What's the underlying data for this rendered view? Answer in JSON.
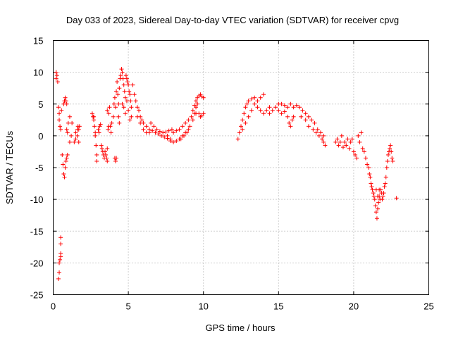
{
  "chart_data": {
    "type": "scatter",
    "title": "Day 033 of 2023, Sidereal Day-to-day VTEC variation (SDTVAR) for receiver cpvg",
    "xlabel": "GPS time / hours",
    "ylabel": "SDTVAR / TECUs",
    "xlim": [
      0,
      25
    ],
    "ylim": [
      -25,
      15
    ],
    "xticks": [
      "0",
      "5",
      "10",
      "15",
      "20",
      "25"
    ],
    "yticks": [
      "15",
      "10",
      "5",
      "0",
      "-5",
      "-10",
      "-15",
      "-20",
      "-25"
    ],
    "grid": true,
    "marker": "+",
    "color": "#ff0000",
    "series": [
      {
        "name": "cpvg",
        "points": [
          [
            0.2,
            9.0
          ],
          [
            0.2,
            10.0
          ],
          [
            0.25,
            9.5
          ],
          [
            0.3,
            8.5
          ],
          [
            0.35,
            -22.5
          ],
          [
            0.4,
            -21.5
          ],
          [
            0.4,
            -20.0
          ],
          [
            0.45,
            -19.5
          ],
          [
            0.5,
            -19.0
          ],
          [
            0.5,
            -18.5
          ],
          [
            0.5,
            -17.0
          ],
          [
            0.5,
            -16.0
          ],
          [
            0.35,
            4.5
          ],
          [
            0.4,
            3.5
          ],
          [
            0.4,
            2.5
          ],
          [
            0.45,
            1.5
          ],
          [
            0.5,
            1.0
          ],
          [
            0.55,
            4.0
          ],
          [
            0.6,
            -3.0
          ],
          [
            0.65,
            -4.5
          ],
          [
            0.7,
            -6.0
          ],
          [
            0.75,
            -6.5
          ],
          [
            0.8,
            -5.0
          ],
          [
            0.85,
            -4.0
          ],
          [
            0.9,
            -3.5
          ],
          [
            0.95,
            -3.0
          ],
          [
            0.7,
            5.0
          ],
          [
            0.75,
            5.5
          ],
          [
            0.8,
            6.0
          ],
          [
            0.85,
            5.5
          ],
          [
            0.9,
            5.0
          ],
          [
            0.9,
            1.0
          ],
          [
            0.95,
            0.5
          ],
          [
            1.0,
            2.0
          ],
          [
            1.1,
            3.0
          ],
          [
            1.1,
            -1.0
          ],
          [
            1.2,
            0.0
          ],
          [
            1.25,
            2.0
          ],
          [
            1.4,
            -1.0
          ],
          [
            1.5,
            -0.5
          ],
          [
            1.5,
            0.5
          ],
          [
            1.6,
            1.0
          ],
          [
            1.6,
            0.0
          ],
          [
            1.65,
            1.5
          ],
          [
            1.7,
            1.0
          ],
          [
            1.7,
            -1.0
          ],
          [
            1.75,
            1.5
          ],
          [
            2.6,
            3.5
          ],
          [
            2.65,
            3.0
          ],
          [
            2.7,
            2.5
          ],
          [
            2.7,
            3.0
          ],
          [
            2.75,
            1.5
          ],
          [
            2.8,
            0.5
          ],
          [
            2.8,
            0.0
          ],
          [
            2.85,
            -1.5
          ],
          [
            2.9,
            -3.0
          ],
          [
            2.9,
            -4.0
          ],
          [
            3.0,
            1.0
          ],
          [
            3.05,
            0.5
          ],
          [
            3.1,
            1.5
          ],
          [
            3.15,
            1.8
          ],
          [
            3.2,
            -1.5
          ],
          [
            3.25,
            -2.0
          ],
          [
            3.3,
            -2.5
          ],
          [
            3.35,
            -3.0
          ],
          [
            3.4,
            -3.5
          ],
          [
            3.45,
            -2.5
          ],
          [
            3.5,
            -3.0
          ],
          [
            3.55,
            -3.5
          ],
          [
            3.6,
            -4.0
          ],
          [
            3.6,
            -2.0
          ],
          [
            3.65,
            1.0
          ],
          [
            3.7,
            1.5
          ],
          [
            3.6,
            4.0
          ],
          [
            3.7,
            3.5
          ],
          [
            3.75,
            4.5
          ],
          [
            3.8,
            1.5
          ],
          [
            3.85,
            0.5
          ],
          [
            3.9,
            2.0
          ],
          [
            4.0,
            3.0
          ],
          [
            4.05,
            5.0
          ],
          [
            4.1,
            6.0
          ],
          [
            4.15,
            4.5
          ],
          [
            4.1,
            -3.5
          ],
          [
            4.15,
            -4.0
          ],
          [
            4.2,
            -3.5
          ],
          [
            4.2,
            7.0
          ],
          [
            4.25,
            8.5
          ],
          [
            4.3,
            6.5
          ],
          [
            4.35,
            5.0
          ],
          [
            4.35,
            3.0
          ],
          [
            4.4,
            2.0
          ],
          [
            4.4,
            7.5
          ],
          [
            4.45,
            9.0
          ],
          [
            4.5,
            9.5
          ],
          [
            4.55,
            10.5
          ],
          [
            4.6,
            10.0
          ],
          [
            4.65,
            9.0
          ],
          [
            4.7,
            8.0
          ],
          [
            4.75,
            7.0
          ],
          [
            4.8,
            6.0
          ],
          [
            4.85,
            9.5
          ],
          [
            4.9,
            9.0
          ],
          [
            4.95,
            8.5
          ],
          [
            5.0,
            8.0
          ],
          [
            5.05,
            7.0
          ],
          [
            5.1,
            6.5
          ],
          [
            5.15,
            5.5
          ],
          [
            5.2,
            4.5
          ],
          [
            4.6,
            5.0
          ],
          [
            4.7,
            4.5
          ],
          [
            4.8,
            3.5
          ],
          [
            4.9,
            5.5
          ],
          [
            5.0,
            4.0
          ],
          [
            5.1,
            2.5
          ],
          [
            5.2,
            3.0
          ],
          [
            5.3,
            8.0
          ],
          [
            5.4,
            6.5
          ],
          [
            5.5,
            5.5
          ],
          [
            5.6,
            4.5
          ],
          [
            5.7,
            4.0
          ],
          [
            5.8,
            3.0
          ],
          [
            5.9,
            2.5
          ],
          [
            6.0,
            2.0
          ],
          [
            5.6,
            3.0
          ],
          [
            5.8,
            2.0
          ],
          [
            6.0,
            1.0
          ],
          [
            6.2,
            0.5
          ],
          [
            6.4,
            0.5
          ],
          [
            6.2,
            1.5
          ],
          [
            6.4,
            1.0
          ],
          [
            6.6,
            0.8
          ],
          [
            6.8,
            0.5
          ],
          [
            7.0,
            0.3
          ],
          [
            7.2,
            0.0
          ],
          [
            7.4,
            -0.2
          ],
          [
            7.6,
            -0.4
          ],
          [
            7.8,
            -0.5
          ],
          [
            6.5,
            2.0
          ],
          [
            6.7,
            1.5
          ],
          [
            6.9,
            1.0
          ],
          [
            7.1,
            0.7
          ],
          [
            7.3,
            0.5
          ],
          [
            7.5,
            0.6
          ],
          [
            7.7,
            0.8
          ],
          [
            7.9,
            1.0
          ],
          [
            7.6,
            0.0
          ],
          [
            7.8,
            -0.8
          ],
          [
            8.0,
            -1.0
          ],
          [
            8.2,
            -0.8
          ],
          [
            8.4,
            -0.5
          ],
          [
            8.6,
            0.0
          ],
          [
            8.8,
            0.5
          ],
          [
            9.0,
            1.0
          ],
          [
            8.0,
            0.5
          ],
          [
            8.2,
            0.8
          ],
          [
            8.4,
            1.0
          ],
          [
            8.6,
            1.5
          ],
          [
            8.8,
            2.0
          ],
          [
            9.0,
            2.5
          ],
          [
            9.2,
            3.0
          ],
          [
            9.4,
            3.5
          ],
          [
            8.5,
            -0.5
          ],
          [
            8.7,
            0.0
          ],
          [
            8.9,
            0.5
          ],
          [
            9.1,
            1.5
          ],
          [
            9.3,
            2.5
          ],
          [
            9.5,
            3.5
          ],
          [
            9.5,
            4.5
          ],
          [
            9.6,
            5.0
          ],
          [
            9.3,
            4.0
          ],
          [
            9.4,
            4.8
          ],
          [
            9.5,
            5.5
          ],
          [
            9.6,
            6.0
          ],
          [
            9.7,
            6.3
          ],
          [
            9.8,
            6.5
          ],
          [
            9.9,
            6.2
          ],
          [
            10.0,
            6.0
          ],
          [
            9.7,
            3.5
          ],
          [
            9.8,
            3.0
          ],
          [
            9.9,
            3.2
          ],
          [
            10.0,
            3.5
          ],
          [
            12.3,
            -0.5
          ],
          [
            12.4,
            0.5
          ],
          [
            12.5,
            1.5
          ],
          [
            12.6,
            2.5
          ],
          [
            12.7,
            3.5
          ],
          [
            12.8,
            4.5
          ],
          [
            12.9,
            5.0
          ],
          [
            13.0,
            5.5
          ],
          [
            12.6,
            1.0
          ],
          [
            12.8,
            2.0
          ],
          [
            13.0,
            3.0
          ],
          [
            13.2,
            4.0
          ],
          [
            13.4,
            5.0
          ],
          [
            13.6,
            5.5
          ],
          [
            13.8,
            6.0
          ],
          [
            14.0,
            6.5
          ],
          [
            13.2,
            5.8
          ],
          [
            13.4,
            6.0
          ],
          [
            13.6,
            4.5
          ],
          [
            13.8,
            4.0
          ],
          [
            14.0,
            3.5
          ],
          [
            14.2,
            4.0
          ],
          [
            14.4,
            4.5
          ],
          [
            14.4,
            3.5
          ],
          [
            14.6,
            4.0
          ],
          [
            14.8,
            4.5
          ],
          [
            15.0,
            5.0
          ],
          [
            15.2,
            5.0
          ],
          [
            15.4,
            4.8
          ],
          [
            15.6,
            4.5
          ],
          [
            15.8,
            5.0
          ],
          [
            15.0,
            4.0
          ],
          [
            15.2,
            3.5
          ],
          [
            15.4,
            3.8
          ],
          [
            15.6,
            3.0
          ],
          [
            15.7,
            2.0
          ],
          [
            15.8,
            1.5
          ],
          [
            15.9,
            2.5
          ],
          [
            16.0,
            3.0
          ],
          [
            16.0,
            4.5
          ],
          [
            16.2,
            4.8
          ],
          [
            16.4,
            4.5
          ],
          [
            16.6,
            4.0
          ],
          [
            16.8,
            3.5
          ],
          [
            17.0,
            3.0
          ],
          [
            17.2,
            2.5
          ],
          [
            17.4,
            2.0
          ],
          [
            16.5,
            3.0
          ],
          [
            16.8,
            2.5
          ],
          [
            17.0,
            1.5
          ],
          [
            17.3,
            1.0
          ],
          [
            17.5,
            0.5
          ],
          [
            17.7,
            0.0
          ],
          [
            17.9,
            -0.5
          ],
          [
            18.0,
            -1.0
          ],
          [
            17.6,
            1.0
          ],
          [
            17.8,
            0.5
          ],
          [
            18.0,
            0.0
          ],
          [
            18.1,
            -1.5
          ],
          [
            18.8,
            -1.0
          ],
          [
            18.9,
            -0.5
          ],
          [
            19.0,
            -1.5
          ],
          [
            19.1,
            -1.0
          ],
          [
            19.2,
            0.0
          ],
          [
            19.3,
            -1.8
          ],
          [
            19.4,
            -1.0
          ],
          [
            19.5,
            -1.5
          ],
          [
            19.6,
            -0.5
          ],
          [
            19.7,
            -2.0
          ],
          [
            19.8,
            -1.0
          ],
          [
            19.9,
            -0.5
          ],
          [
            20.0,
            -2.5
          ],
          [
            20.1,
            -3.0
          ],
          [
            20.2,
            -3.5
          ],
          [
            20.3,
            0.0
          ],
          [
            20.4,
            -1.0
          ],
          [
            20.5,
            0.5
          ],
          [
            20.6,
            -2.0
          ],
          [
            20.7,
            -2.5
          ],
          [
            20.8,
            -3.5
          ],
          [
            20.9,
            -4.5
          ],
          [
            21.0,
            -5.0
          ],
          [
            21.05,
            -6.0
          ],
          [
            21.1,
            -6.5
          ],
          [
            21.15,
            -7.5
          ],
          [
            21.2,
            -8.0
          ],
          [
            21.25,
            -8.5
          ],
          [
            21.3,
            -9.0
          ],
          [
            21.35,
            -9.5
          ],
          [
            21.4,
            -10.0
          ],
          [
            21.45,
            -11.0
          ],
          [
            21.5,
            -12.0
          ],
          [
            21.55,
            -13.0
          ],
          [
            21.6,
            -11.5
          ],
          [
            21.65,
            -10.5
          ],
          [
            21.7,
            -9.5
          ],
          [
            21.75,
            -10.0
          ],
          [
            21.8,
            -8.5
          ],
          [
            21.85,
            -9.0
          ],
          [
            21.9,
            -10.0
          ],
          [
            21.95,
            -9.5
          ],
          [
            22.0,
            -9.0
          ],
          [
            22.05,
            -8.0
          ],
          [
            22.1,
            -7.5
          ],
          [
            22.15,
            -6.5
          ],
          [
            22.2,
            -5.0
          ],
          [
            22.25,
            -4.0
          ],
          [
            22.3,
            -3.0
          ],
          [
            22.35,
            -2.5
          ],
          [
            22.4,
            -2.0
          ],
          [
            22.45,
            -1.5
          ],
          [
            22.5,
            -2.5
          ],
          [
            22.55,
            -3.5
          ],
          [
            22.6,
            -4.0
          ],
          [
            21.5,
            -8.5
          ],
          [
            21.6,
            -9.5
          ],
          [
            21.7,
            -8.5
          ],
          [
            22.85,
            -9.8
          ]
        ]
      }
    ]
  }
}
